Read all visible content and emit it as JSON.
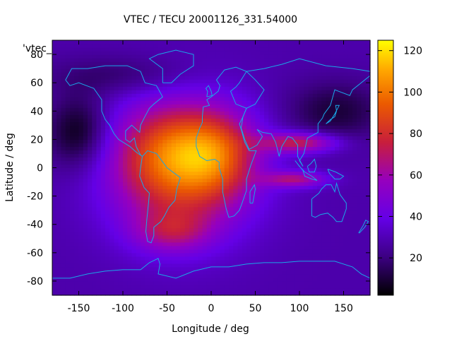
{
  "chart_data": {
    "type": "heatmap",
    "title": "VTEC / TECU 20001126_331.54000",
    "xlabel": "Longitude / deg",
    "ylabel": "Latitude / deg",
    "key_label": "'vtec_",
    "xlim": [
      -180,
      180
    ],
    "ylim": [
      -90,
      90
    ],
    "xticks": [
      -150,
      -100,
      -50,
      0,
      50,
      100,
      150
    ],
    "yticks": [
      -80,
      -60,
      -40,
      -20,
      0,
      20,
      40,
      60,
      80
    ],
    "colorbar": {
      "min": 2,
      "max": 125,
      "ticks": [
        20,
        40,
        60,
        80,
        100,
        120
      ]
    },
    "field": {
      "description_units": "TECU",
      "background": 28,
      "features": [
        {
          "lon": -35,
          "lat": 0,
          "sigma_lon": 55,
          "sigma_lat": 32,
          "amp": 62
        },
        {
          "lon": -40,
          "lat": 15,
          "sigma_lon": 45,
          "sigma_lat": 20,
          "amp": 20
        },
        {
          "lon": 10,
          "lat": 10,
          "sigma_lon": 30,
          "sigma_lat": 20,
          "amp": 25
        },
        {
          "lon": 100,
          "lat": 18,
          "sigma_lon": 30,
          "sigma_lat": 5,
          "amp": 45
        },
        {
          "lon": 95,
          "lat": -8,
          "sigma_lon": 25,
          "sigma_lat": 4,
          "amp": 35
        },
        {
          "lon": -45,
          "lat": -45,
          "sigma_lon": 30,
          "sigma_lat": 10,
          "amp": 25
        },
        {
          "lon": -150,
          "lat": 25,
          "sigma_lon": 25,
          "sigma_lat": 18,
          "amp": -25
        },
        {
          "lon": 140,
          "lat": 40,
          "sigma_lon": 40,
          "sigma_lat": 15,
          "amp": -18
        },
        {
          "lon": -100,
          "lat": 65,
          "sigma_lon": 60,
          "sigma_lat": 10,
          "amp": -12
        }
      ]
    }
  }
}
